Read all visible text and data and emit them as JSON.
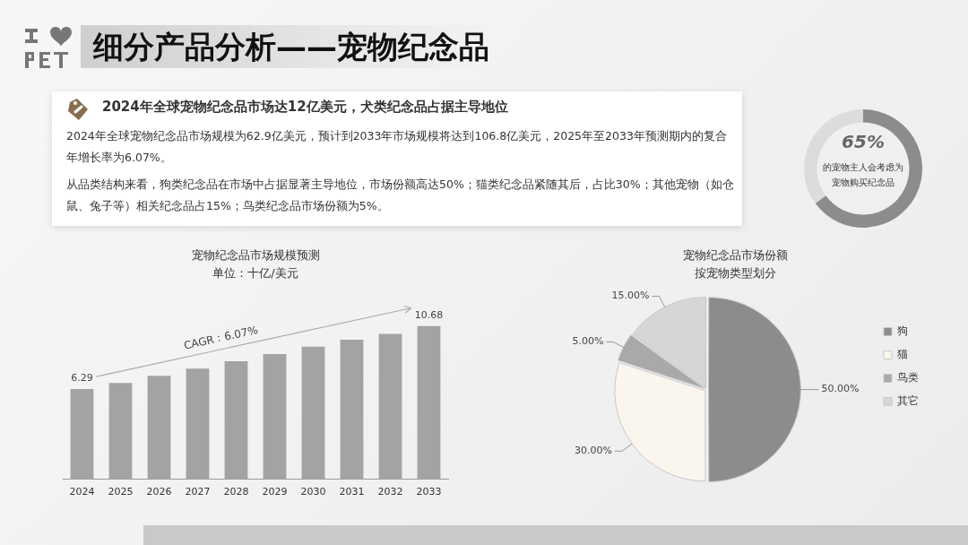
{
  "chart_data": [
    {
      "type": "other",
      "title": "细分产品分析——宠物纪念品",
      "subtitle": "2024年全球宠物纪念品市场达12亿美元，犬类纪念品占据主导地位",
      "annotations": [
        "2024年全球宠物纪念品市场规模为62.9亿美元，预计到2033年市场规模将达到106.8亿美元，2025年至2033年预测期内的复合年增长率为6.07%。",
        "从品类结构来看，狗类纪念品在市场中占据显著主导地位，市场份额高达50%；猫类纪念品紧随其后，占比30%；其他宠物（如仓鼠、兔子等）相关纪念品占15%；鸟类纪念品市场份额为5%。"
      ]
    },
    {
      "type": "donut",
      "title": "65%",
      "annotations": [
        "的宠物主人会考虑为宠物购买纪念品"
      ],
      "categories": [
        null,
        null
      ],
      "values": [
        65,
        35
      ],
      "colors": [
        "#8c8c8c",
        "#dcdcdc"
      ]
    },
    {
      "type": "bar",
      "title": "宠物纪念品市场规模预测",
      "subtitle": "单位：十亿/美元",
      "categories": [
        "2024",
        "2025",
        "2026",
        "2027",
        "2028",
        "2029",
        "2030",
        "2031",
        "2032",
        "2033"
      ],
      "values": [
        6.29,
        6.71,
        7.22,
        7.71,
        8.23,
        8.72,
        9.24,
        9.73,
        10.13,
        10.68
      ],
      "value_labels": [
        "6.29",
        null,
        null,
        null,
        null,
        null,
        null,
        null,
        null,
        "10.68"
      ],
      "color": "#a3a3a3",
      "annotations": [
        "CAGR：6.07%"
      ],
      "grid": false,
      "legend": false
    },
    {
      "type": "pie",
      "title": "宠物纪念品市场份额",
      "subtitle": "按宠物类型划分",
      "categories": [
        "狗",
        "猫",
        "鸟类",
        "其它"
      ],
      "values": [
        50,
        30,
        5,
        15
      ],
      "value_labels": [
        "50.00%",
        "30.00%",
        "5.00%",
        "15.00%"
      ],
      "colors": [
        "#8c8c8c",
        "#faf6ee",
        "#a9a9a9",
        "#d6d6d6"
      ],
      "legend": "right"
    }
  ]
}
